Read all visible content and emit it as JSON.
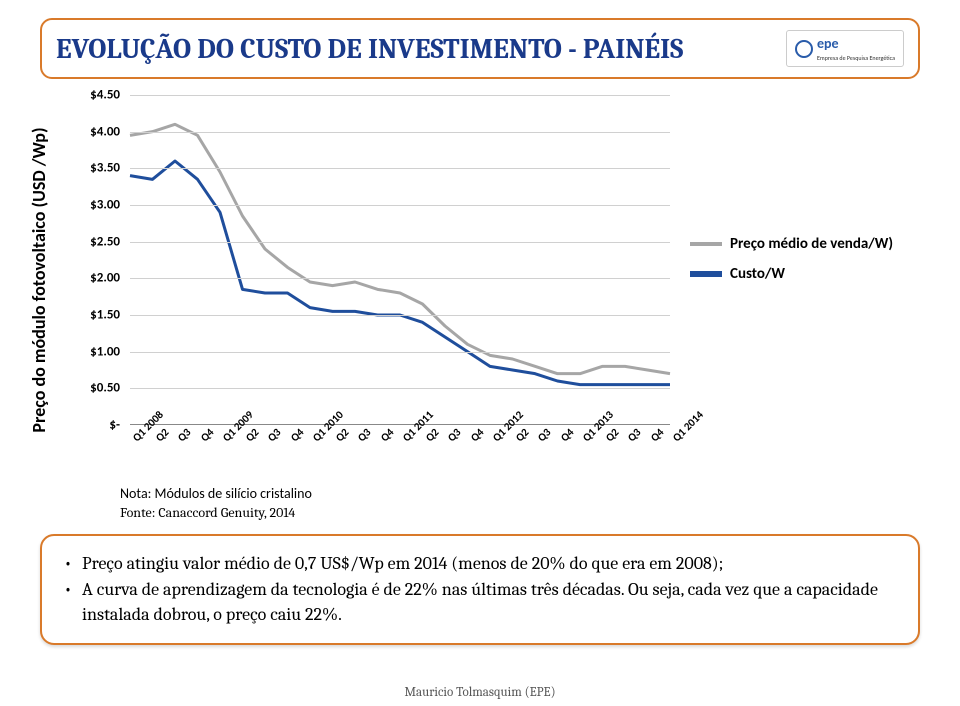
{
  "title": "EVOLUÇÃO DO CUSTO DE INVESTIMENTO - PAINÉIS",
  "logo": {
    "text": "epe",
    "subtitle": "Empresa de Pesquisa Energética"
  },
  "y_axis_label": "Preço do módulo fotovoltaico (USD /Wp)",
  "chart": {
    "type": "line",
    "y_min": 0,
    "y_max": 4.5,
    "y_tick_labels": [
      "$-",
      "$0.50",
      "$1.00",
      "$1.50",
      "$2.00",
      "$2.50",
      "$3.00",
      "$3.50",
      "$4.00",
      "$4.50"
    ],
    "y_tick_values": [
      0,
      0.5,
      1.0,
      1.5,
      2.0,
      2.5,
      3.0,
      3.5,
      4.0,
      4.5
    ],
    "x_labels": [
      "Q1 2008",
      "Q2",
      "Q3",
      "Q4",
      "Q1 2009",
      "Q2",
      "Q3",
      "Q4",
      "Q1 2010",
      "Q2",
      "Q3",
      "Q4",
      "Q1 2011",
      "Q2",
      "Q3",
      "Q4",
      "Q1 2012",
      "Q2",
      "Q3",
      "Q4",
      "Q1 2013",
      "Q2",
      "Q3",
      "Q4",
      "Q1 2014"
    ],
    "grid_color": "#d0d0d0",
    "series": [
      {
        "name": "Preço médio de venda/W)",
        "color": "#a6a6a6",
        "width": 3,
        "values": [
          3.95,
          4.0,
          4.1,
          3.95,
          3.45,
          2.85,
          2.4,
          2.15,
          1.95,
          1.9,
          1.95,
          1.85,
          1.8,
          1.65,
          1.35,
          1.1,
          0.95,
          0.9,
          0.8,
          0.7,
          0.7,
          0.8,
          0.8,
          0.75,
          0.7
        ]
      },
      {
        "name": "Custo/W",
        "color": "#1f4e9c",
        "width": 3,
        "values": [
          3.4,
          3.35,
          3.6,
          3.35,
          2.9,
          1.85,
          1.8,
          1.8,
          1.6,
          1.55,
          1.55,
          1.5,
          1.5,
          1.4,
          1.2,
          1.0,
          0.8,
          0.75,
          0.7,
          0.6,
          0.55,
          0.55,
          0.55,
          0.55,
          0.55
        ]
      }
    ]
  },
  "legend": {
    "items": [
      {
        "label": "Preço médio de venda/W)",
        "color": "#a6a6a6",
        "thick": false
      },
      {
        "label": "Custo/W",
        "color": "#1f4e9c",
        "thick": true
      }
    ]
  },
  "note": {
    "line1": "Nota: Módulos de silício cristalino",
    "line2": "Fonte: Canaccord Genuity, 2014"
  },
  "bullets": [
    "Preço atingiu valor médio de 0,7 US$/Wp em 2014 (menos de 20% do que era em 2008);",
    "A curva de aprendizagem da tecnologia é de 22% nas últimas três décadas. Ou seja, cada vez que a capacidade instalada dobrou, o preço caiu 22%."
  ],
  "author": "Mauricio Tolmasquim (EPE)"
}
